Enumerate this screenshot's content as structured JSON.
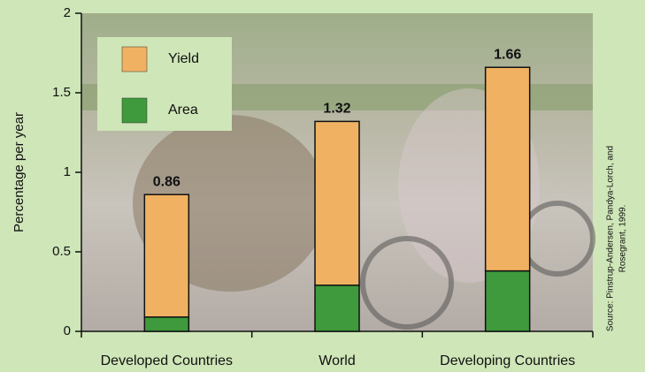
{
  "chart_data": {
    "type": "stacked_bar",
    "y_label": "Percentage per year",
    "categories": [
      "Developed Countries",
      "World",
      "Developing Countries"
    ],
    "series": [
      {
        "name": "Yield",
        "color": "#f0b262",
        "values": [
          0.77,
          1.03,
          1.28
        ]
      },
      {
        "name": "Area",
        "color": "#3e9a3c",
        "values": [
          0.09,
          0.29,
          0.38
        ]
      }
    ],
    "totals": [
      0.86,
      1.32,
      1.66
    ],
    "ylim": [
      0,
      2
    ],
    "yticks": [
      0,
      0.5,
      1,
      1.5,
      2
    ],
    "source": [
      "Source: Pinstrup-Andersen, Pandya-Lorch, and",
      "Rosegrant, 1999."
    ]
  }
}
